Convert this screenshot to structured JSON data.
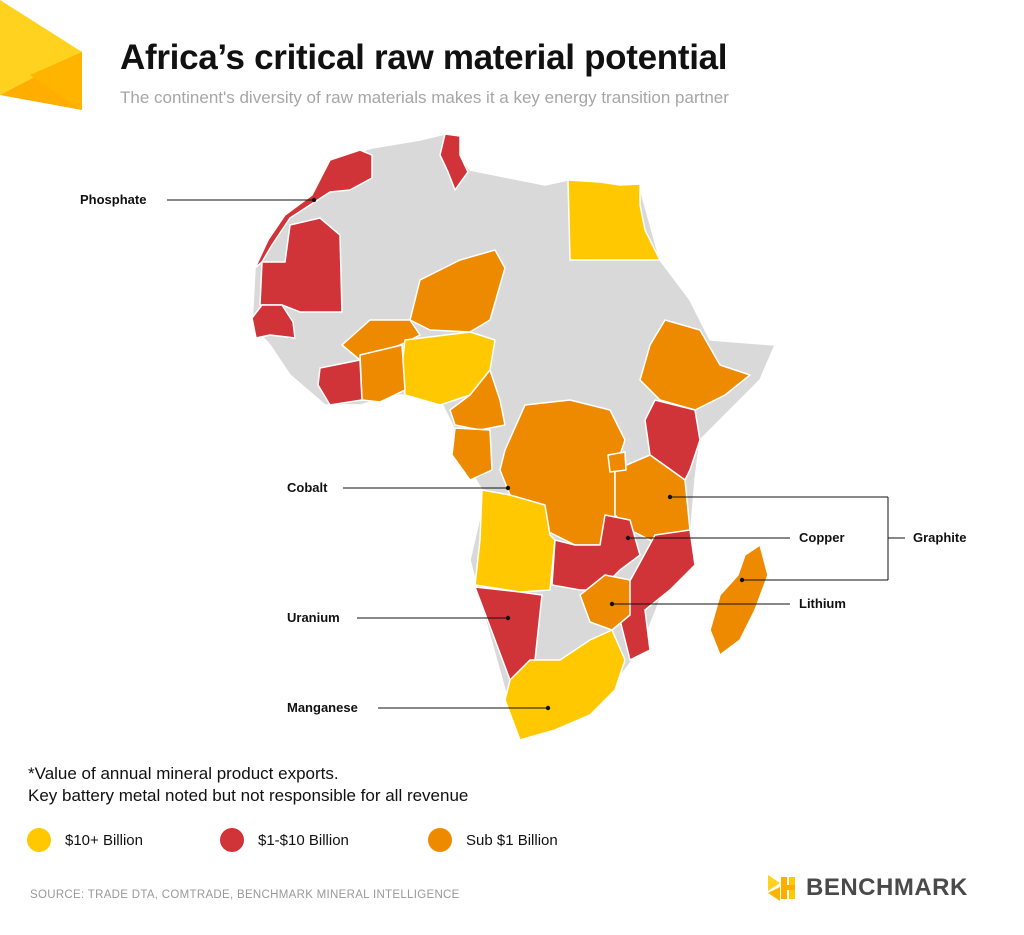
{
  "header": {
    "title": "Africa’s critical raw material potential",
    "subtitle": "The continent's diversity of raw materials makes it a key energy transition partner"
  },
  "colors": {
    "ten_plus": "#ffc800",
    "one_to_ten": "#d13438",
    "sub_one": "#ee8a00",
    "no_data": "#d9d9d9"
  },
  "callouts": {
    "phosphate": "Phosphate",
    "cobalt": "Cobalt",
    "copper": "Copper",
    "graphite": "Graphite",
    "lithium": "Lithium",
    "uranium": "Uranium",
    "manganese": "Manganese"
  },
  "notes": {
    "line1": "*Value of annual mineral product exports.",
    "line2": "Key battery metal noted but not responsible for all revenue"
  },
  "legend": {
    "items": [
      {
        "label": "$10+ Billion",
        "color": "#ffc800"
      },
      {
        "label": "$1-$10 Billion",
        "color": "#d13438"
      },
      {
        "label": "Sub $1 Billion",
        "color": "#ee8a00"
      }
    ]
  },
  "footer": {
    "source": "SOURCE: TRADE DTA, COMTRADE, BENCHMARK MINERAL INTELLIGENCE",
    "brand": "BENCHMARK",
    "brand_icon": "benchmark-logo-icon"
  }
}
